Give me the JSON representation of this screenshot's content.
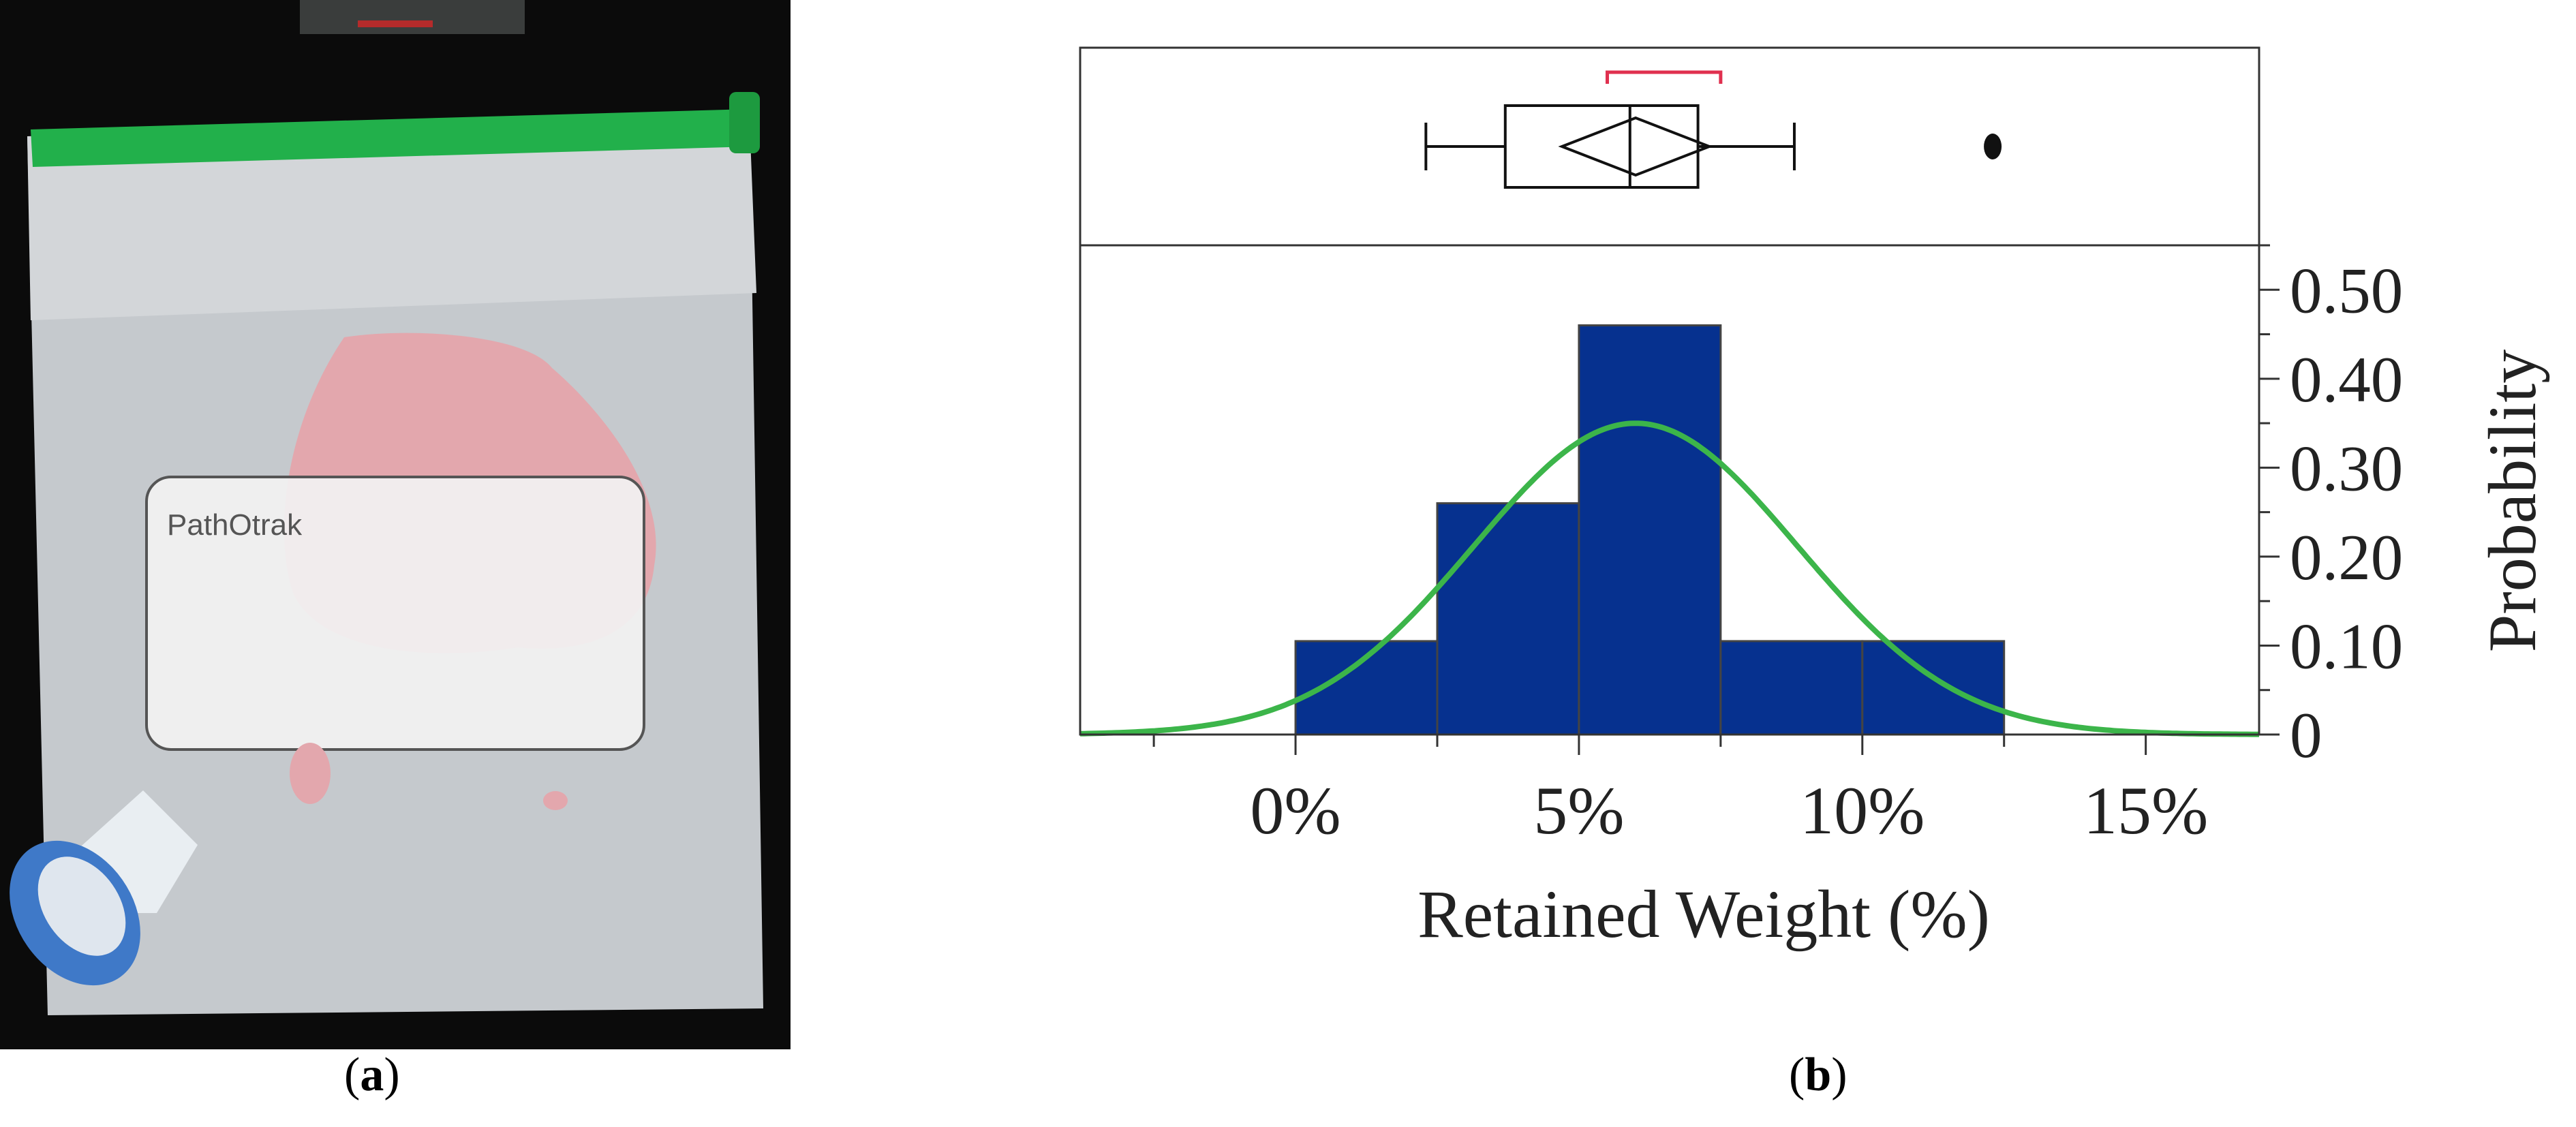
{
  "panels": {
    "a": {
      "caption_open": "(",
      "caption_letter": "a",
      "caption_close": ")"
    },
    "b": {
      "caption_open": "(",
      "caption_letter": "b",
      "caption_close": ")"
    }
  },
  "photo": {
    "bag_label_text": "PathOtrak",
    "colors": {
      "background": "#0b0b0b",
      "bag": "#c9cdd1",
      "zip_strip": "#22b04b",
      "meat": "#e3a7ad",
      "valve_blue": "#3f79c8",
      "label": "#f2f2f2"
    }
  },
  "chart_data": {
    "type": "histogram",
    "xlabel": "Retained Weight (%)",
    "ylabel": "Probability",
    "x_ticks": [
      0,
      5,
      10,
      15
    ],
    "x_tick_labels": [
      "0%",
      "5%",
      "10%",
      "15%"
    ],
    "y_ticks": [
      0,
      0.1,
      0.2,
      0.3,
      0.4,
      0.5
    ],
    "y_tick_labels": [
      "0",
      "0.10",
      "0.20",
      "0.30",
      "0.40",
      "0.50"
    ],
    "xlim": [
      -3.8,
      17
    ],
    "ylim": [
      0,
      0.55
    ],
    "bins": [
      {
        "start": 0,
        "end": 2.5,
        "probability": 0.105
      },
      {
        "start": 2.5,
        "end": 5,
        "probability": 0.26
      },
      {
        "start": 5,
        "end": 7.5,
        "probability": 0.46
      },
      {
        "start": 7.5,
        "end": 10,
        "probability": 0.105
      },
      {
        "start": 10,
        "end": 12.5,
        "probability": 0.105
      }
    ],
    "normal_fit": {
      "mean": 6.0,
      "sd": 2.85,
      "bin_width": 2.5
    },
    "boxplot": {
      "whisker_low": 2.3,
      "q1": 3.7,
      "median": 5.9,
      "q3": 7.1,
      "whisker_high": 8.8,
      "mean": 6.0,
      "ci_low": 4.7,
      "ci_high": 7.3,
      "outliers": [
        12.3
      ],
      "shortest_half": [
        5.5,
        7.5
      ]
    },
    "grid": false,
    "legend": "none",
    "colors": {
      "bars": "#06318f",
      "fit": "#3cb54a",
      "shortest_half": "#e0304f",
      "frame": "#333333"
    }
  }
}
